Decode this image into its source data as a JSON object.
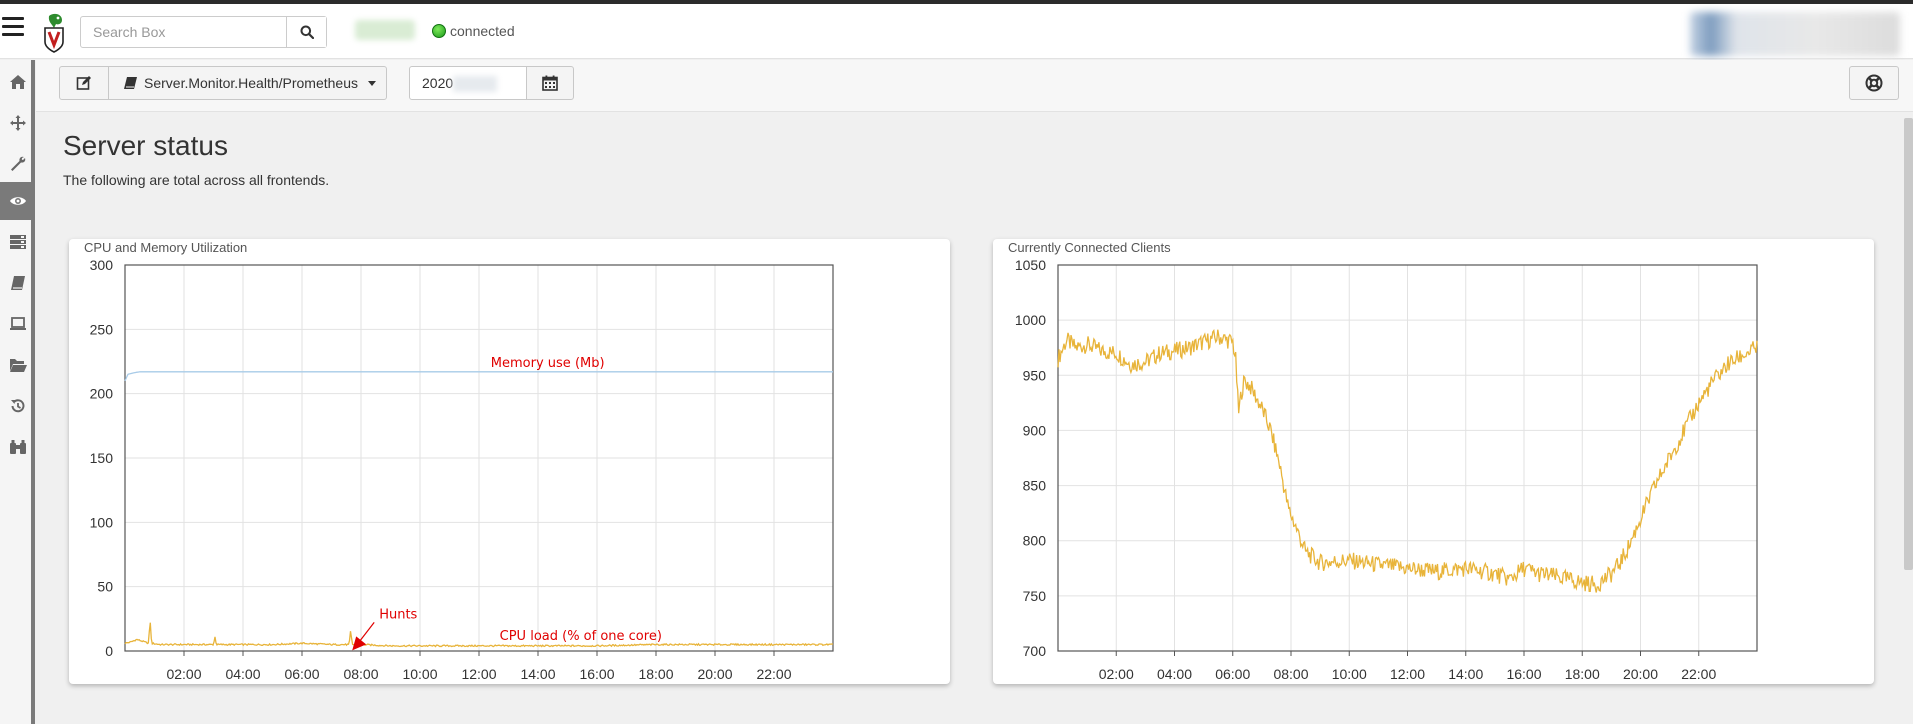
{
  "header": {
    "search_placeholder": "Search Box",
    "connection_status": "connected"
  },
  "sidebar": {
    "items": [
      {
        "icon": "home-icon"
      },
      {
        "icon": "crosshair-icon"
      },
      {
        "icon": "wrench-icon"
      },
      {
        "icon": "eye-icon",
        "active": true
      },
      {
        "icon": "server-icon"
      },
      {
        "icon": "book-icon"
      },
      {
        "icon": "laptop-icon"
      },
      {
        "icon": "folder-open-icon"
      },
      {
        "icon": "history-icon"
      },
      {
        "icon": "binoculars-icon"
      }
    ]
  },
  "toolbar": {
    "artifact_label": "Server.Monitor.Health/Prometheus",
    "date_prefix": "2020"
  },
  "main": {
    "title": "Server status",
    "subtitle": "The following are total across all frontends."
  },
  "chart_data": [
    {
      "type": "line",
      "title": "CPU and Memory Utilization",
      "x_ticks": [
        "02:00",
        "04:00",
        "06:00",
        "08:00",
        "10:00",
        "12:00",
        "14:00",
        "16:00",
        "18:00",
        "20:00",
        "22:00"
      ],
      "x_range_hours": [
        0,
        24
      ],
      "ylim": [
        0,
        300
      ],
      "y_ticks": [
        0,
        50,
        100,
        150,
        200,
        250,
        300
      ],
      "grid": true,
      "series": [
        {
          "name": "Memory use (Mb)",
          "color": "#a8cbe8",
          "x": [
            0,
            0.1,
            0.25,
            0.5,
            1,
            2,
            4,
            8,
            12,
            16,
            20,
            24
          ],
          "y": [
            210,
            215,
            216,
            217,
            217,
            217,
            217,
            217,
            217,
            217,
            217,
            217
          ]
        },
        {
          "name": "CPU load (% of one core)",
          "color": "#e8b43a",
          "x": [
            0,
            0.2,
            0.4,
            0.8,
            0.85,
            0.9,
            1.2,
            1.8,
            2.6,
            3.0,
            3.05,
            3.1,
            4,
            5,
            6,
            7,
            7.6,
            7.65,
            7.7,
            8,
            9,
            10,
            12,
            14,
            16,
            18,
            20,
            22,
            24
          ],
          "y": [
            6,
            7,
            9,
            6,
            25,
            6,
            5,
            5,
            5,
            5,
            11,
            5,
            5,
            5,
            6,
            5,
            5,
            16,
            5,
            5,
            4,
            4,
            4,
            4,
            4,
            5,
            5,
            5,
            5
          ]
        }
      ],
      "annotations": [
        {
          "text": "Memory use (Mb)",
          "x": 12.4,
          "y": 219
        },
        {
          "text": "Hunts",
          "x": 7.6,
          "y": 16
        },
        {
          "text": "CPU load (% of one core)",
          "x": 12.7,
          "y": 7
        }
      ],
      "annotation_color": "#e00000"
    },
    {
      "type": "line",
      "title": "Currently Connected Clients",
      "x_ticks": [
        "02:00",
        "04:00",
        "06:00",
        "08:00",
        "10:00",
        "12:00",
        "14:00",
        "16:00",
        "18:00",
        "20:00",
        "22:00"
      ],
      "x_range_hours": [
        0,
        24
      ],
      "ylim": [
        700,
        1050
      ],
      "y_ticks": [
        700,
        750,
        800,
        850,
        900,
        950,
        1000,
        1050
      ],
      "grid": true,
      "series": [
        {
          "name": "",
          "color": "#e8b43a",
          "x": [
            0,
            0.3,
            0.6,
            1,
            1.5,
            2,
            2.5,
            3,
            3.5,
            4,
            4.5,
            5,
            5.5,
            6,
            6.1,
            6.2,
            6.3,
            6.4,
            6.6,
            7,
            7.3,
            7.6,
            7.9,
            8.2,
            8.5,
            9,
            10,
            11,
            12,
            13,
            14,
            15,
            15.5,
            16,
            16.5,
            17,
            18,
            18.5,
            19,
            19.3,
            19.6,
            20,
            20.5,
            21,
            21.5,
            22,
            22.5,
            23,
            23.5,
            24
          ],
          "y": [
            965,
            982,
            975,
            978,
            972,
            970,
            960,
            962,
            970,
            972,
            975,
            980,
            985,
            980,
            965,
            915,
            935,
            945,
            940,
            920,
            900,
            870,
            830,
            810,
            790,
            780,
            782,
            778,
            775,
            772,
            775,
            770,
            765,
            775,
            770,
            768,
            762,
            760,
            770,
            780,
            795,
            820,
            850,
            875,
            900,
            925,
            945,
            960,
            968,
            975
          ]
        }
      ]
    }
  ]
}
